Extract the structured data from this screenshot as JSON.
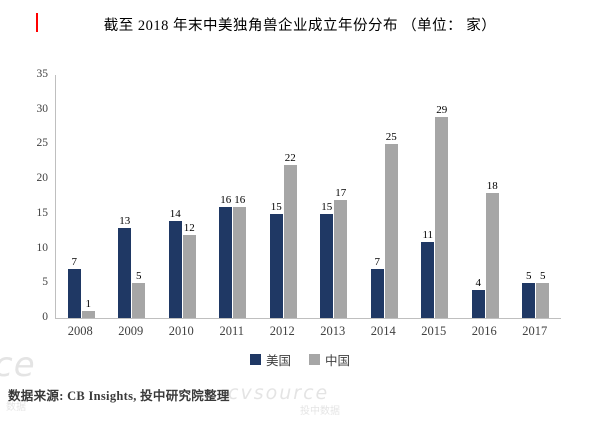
{
  "title": "截至 2018 年末中美独角兽企业成立年份分布 （单位： 家）",
  "accent_red": "#ff0000",
  "footer": {
    "source": "数据来源: CB Insights,  投中研究院整理"
  },
  "watermarks": {
    "bottom_left_big": "ce",
    "bottom_left_small": "数据",
    "center_big": "cvsource",
    "center_small": "投中数据"
  },
  "chart_data": {
    "type": "bar",
    "title": "截至 2018 年末中美独角兽企业成立年份分布 （单位： 家）",
    "categories": [
      "2008",
      "2009",
      "2010",
      "2011",
      "2012",
      "2013",
      "2014",
      "2015",
      "2016",
      "2017"
    ],
    "series": [
      {
        "name": "美国",
        "color": "#1F3864",
        "values": [
          7,
          13,
          14,
          16,
          15,
          15,
          7,
          11,
          4,
          5
        ]
      },
      {
        "name": "中国",
        "color": "#A6A6A6",
        "values": [
          1,
          5,
          12,
          16,
          22,
          17,
          25,
          29,
          18,
          5
        ]
      }
    ],
    "xlabel": "",
    "ylabel": "",
    "ylim": [
      0,
      35
    ],
    "yticks": [
      0,
      5,
      10,
      15,
      20,
      25,
      30,
      35
    ],
    "grid": false,
    "legend_position": "bottom",
    "data_labels": true
  }
}
